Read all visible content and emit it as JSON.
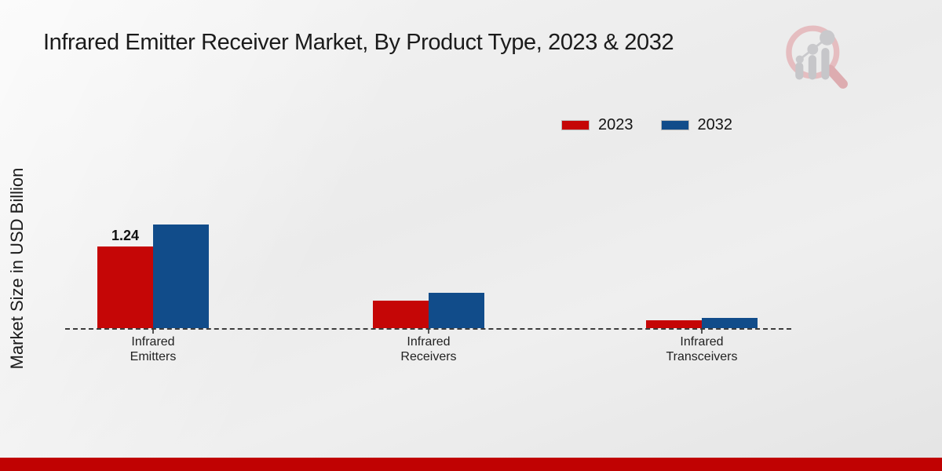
{
  "page": {
    "footer_color": "#c00202",
    "background_color": "#ebebeb"
  },
  "icons": {
    "logo": "magnifier-bar-chart-logo"
  },
  "chart_data": {
    "type": "bar",
    "title": "Infrared Emitter Receiver Market, By Product Type, 2023 & 2032",
    "ylabel": "Market Size in USD Billion",
    "xlabel": "",
    "categories": [
      "Infrared\nEmitters",
      "Infrared\nReceivers",
      "Infrared\nTransceivers"
    ],
    "series": [
      {
        "name": "2023",
        "color": "#c50606",
        "values": [
          1.24,
          0.42,
          0.12
        ]
      },
      {
        "name": "2032",
        "color": "#114c8a",
        "values": [
          1.57,
          0.54,
          0.15
        ]
      }
    ],
    "data_labels": [
      {
        "series": 0,
        "category": 0,
        "text": "1.24"
      }
    ],
    "baseline": {
      "style": "dashed",
      "color": "#3c3c3c"
    },
    "grid": false,
    "legend_position": "top-right",
    "ylim": [
      0,
      1.8
    ]
  }
}
